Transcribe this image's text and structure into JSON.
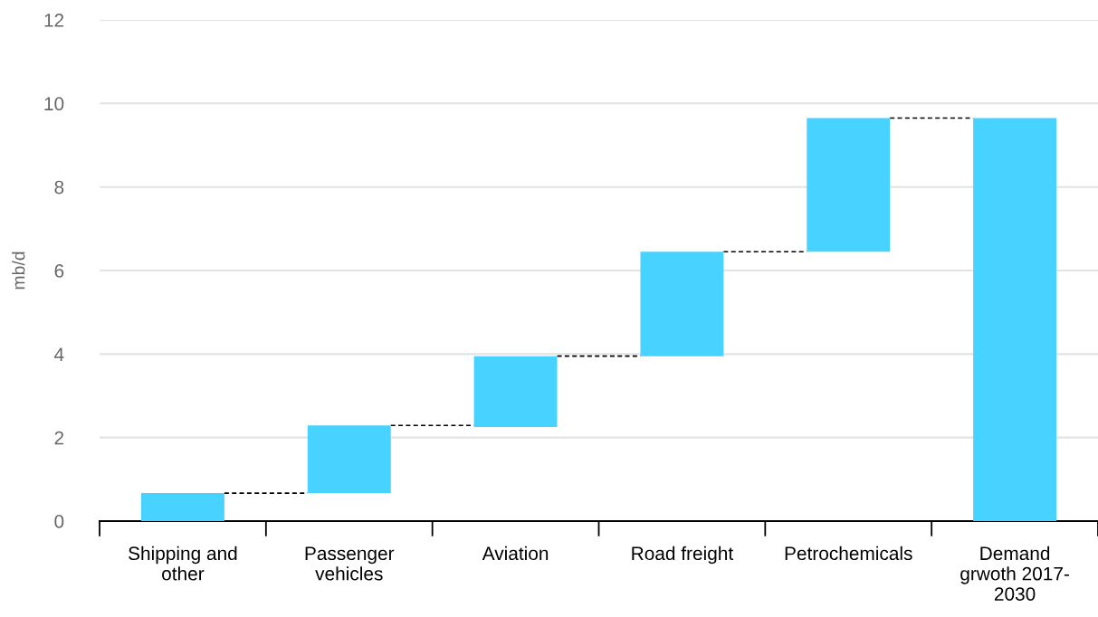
{
  "chart_data": {
    "type": "bar",
    "ylabel": "mb/d",
    "categories": [
      "Shipping and\nother",
      "Passenger\nvehicles",
      "Aviation",
      "Road freight",
      "Petrochemicals",
      "Demand\ngrwoth 2017-\n2030"
    ],
    "values": [
      0.67,
      1.62,
      1.7,
      2.5,
      3.2,
      9.65
    ],
    "base": [
      0,
      0.67,
      2.25,
      3.95,
      6.45,
      0
    ],
    "color": "#48d2ff",
    "ylim": [
      0,
      12
    ],
    "yticks": [
      0,
      2,
      4,
      6,
      8,
      10,
      12
    ],
    "grid": "y"
  }
}
